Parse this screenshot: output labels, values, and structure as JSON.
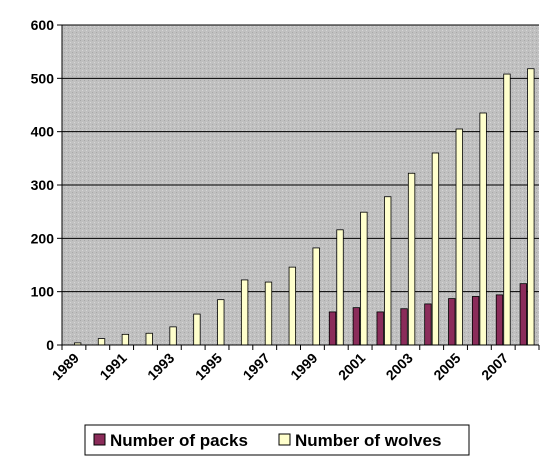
{
  "chart_data": {
    "type": "bar",
    "categories": [
      "1989",
      "1990",
      "1991",
      "1992",
      "1993",
      "1994",
      "1995",
      "1996",
      "1997",
      "1998",
      "1999",
      "2000",
      "2001",
      "2002",
      "2003",
      "2004",
      "2005",
      "2006",
      "2007",
      "2008"
    ],
    "x_tick_labels": [
      "1989",
      "1991",
      "1993",
      "1995",
      "1997",
      "1999",
      "2001",
      "2003",
      "2005",
      "2007"
    ],
    "series": [
      {
        "name": "Number of packs",
        "color": "#8B2C5A",
        "values": [
          0,
          0,
          0,
          0,
          0,
          0,
          0,
          0,
          0,
          0,
          0,
          62,
          70,
          62,
          68,
          77,
          87,
          91,
          94,
          115
        ]
      },
      {
        "name": "Number of wolves",
        "color": "#FFFFCC",
        "values": [
          4,
          12,
          20,
          22,
          34,
          58,
          85,
          122,
          118,
          146,
          182,
          216,
          249,
          278,
          322,
          360,
          405,
          435,
          508,
          518
        ]
      }
    ],
    "ylim": [
      0,
      600
    ],
    "y_ticks": [
      0,
      100,
      200,
      300,
      400,
      500,
      600
    ],
    "grid": true,
    "plot_background": "#C0C0C0",
    "legend_position": "bottom",
    "title": "",
    "xlabel": "",
    "ylabel": ""
  }
}
